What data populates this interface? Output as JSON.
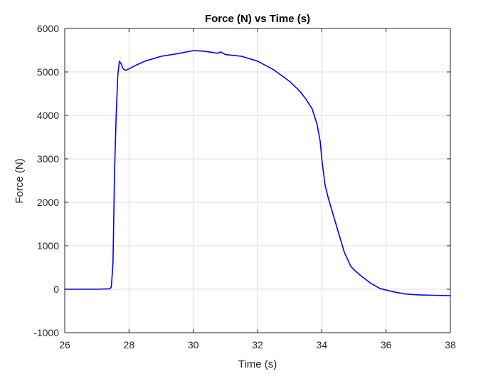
{
  "chart_data": {
    "type": "line",
    "title": "Force (N) vs Time (s)",
    "xlabel": "Time (s)",
    "ylabel": "Force (N)",
    "xlim": [
      26,
      38
    ],
    "ylim": [
      -1000,
      6000
    ],
    "xticks": [
      26,
      28,
      30,
      32,
      34,
      36,
      38
    ],
    "yticks": [
      -1000,
      0,
      1000,
      2000,
      3000,
      4000,
      5000,
      6000
    ],
    "grid": true,
    "legend": "none",
    "series": [
      {
        "color": "#0000ff",
        "x": [
          26,
          27,
          27.4,
          27.45,
          27.5,
          27.55,
          27.6,
          27.65,
          27.7,
          27.75,
          27.8,
          27.85,
          27.9,
          28,
          28.2,
          28.5,
          29,
          29.5,
          30,
          30.3,
          30.6,
          30.75,
          30.85,
          31,
          31.5,
          32,
          32.5,
          33,
          33.3,
          33.5,
          33.7,
          33.85,
          33.95,
          34,
          34.05,
          34.1,
          34.2,
          34.3,
          34.5,
          34.7,
          34.9,
          35,
          35.2,
          35.5,
          35.8,
          36,
          36.3,
          36.6,
          37,
          37.5,
          38
        ],
        "y": [
          0,
          0,
          10,
          50,
          600,
          2700,
          4000,
          4900,
          5250,
          5200,
          5100,
          5050,
          5040,
          5070,
          5150,
          5250,
          5360,
          5420,
          5490,
          5480,
          5450,
          5430,
          5460,
          5400,
          5360,
          5250,
          5050,
          4780,
          4570,
          4380,
          4150,
          3800,
          3400,
          3000,
          2700,
          2400,
          2100,
          1850,
          1350,
          850,
          530,
          450,
          320,
          150,
          20,
          -20,
          -70,
          -110,
          -130,
          -140,
          -150
        ]
      }
    ]
  }
}
